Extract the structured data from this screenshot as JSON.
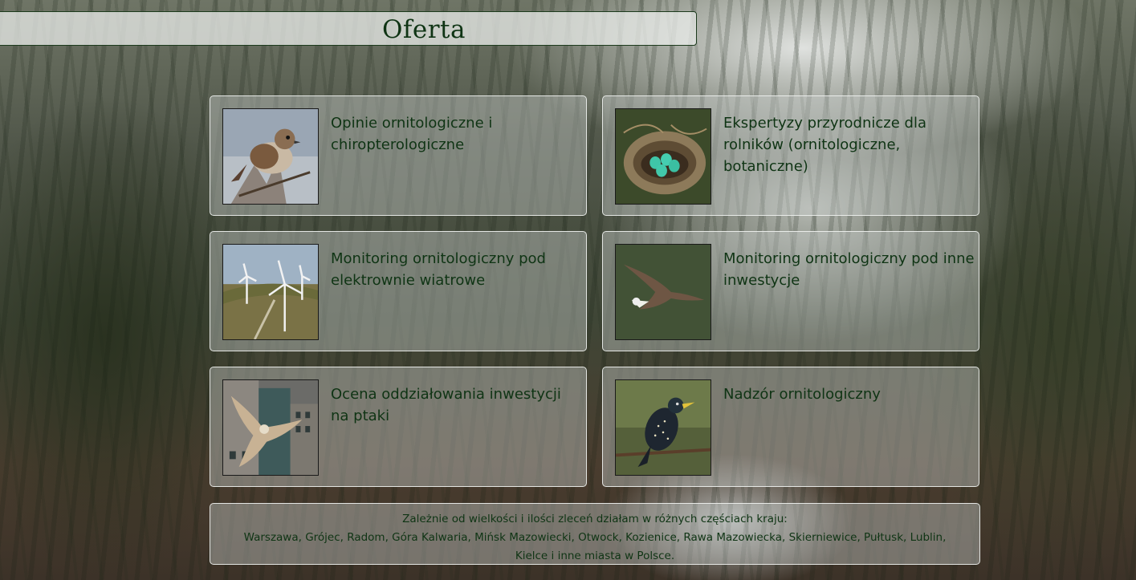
{
  "header": {
    "title": "Oferta"
  },
  "offers": [
    {
      "label": "Opinie ornitologiczne i chiropterologiczne",
      "icon": "sparrow-photo"
    },
    {
      "label": "Ekspertyzy przyrodnicze dla rolników (ornitologiczne, botaniczne)",
      "icon": "bird-nest-eggs-photo"
    },
    {
      "label": "Monitoring ornitologiczny pod elektrownie wiatrowe",
      "icon": "wind-turbines-photo"
    },
    {
      "label": "Monitoring ornitologiczny pod inne inwestycje",
      "icon": "eagle-flying-photo"
    },
    {
      "label": "Ocena oddziałowania inwestycji na ptaki",
      "icon": "gull-city-photo"
    },
    {
      "label": "Nadzór ornitologiczny",
      "icon": "starling-photo"
    }
  ],
  "footer": {
    "line1": "Zależnie od wielkości i ilości zleceń działam w różnych częściach kraju:",
    "line2": "Warszawa, Grójec, Radom, Góra Kalwaria, Mińsk Mazowiecki, Otwock, Kozienice, Rawa Mazowiecka, Skierniewice, Pułtusk, Lublin,",
    "line3": "Kielce i inne miasta w Polsce."
  },
  "colors": {
    "text": "#0f3414",
    "title_border": "#1c3a1c"
  }
}
